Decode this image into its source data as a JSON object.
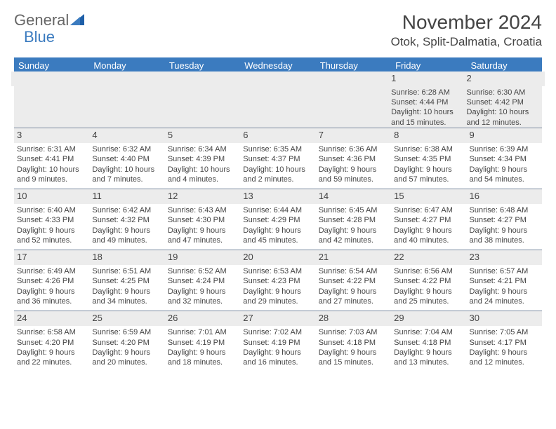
{
  "logo": {
    "general": "General",
    "blue": "Blue"
  },
  "title": "November 2024",
  "location": "Otok, Split-Dalmatia, Croatia",
  "colors": {
    "header_bg": "#3b7bbf",
    "header_text": "#ffffff",
    "daynum_bg": "#ececec",
    "border": "#7a8aa0",
    "text": "#444444"
  },
  "day_headers": [
    "Sunday",
    "Monday",
    "Tuesday",
    "Wednesday",
    "Thursday",
    "Friday",
    "Saturday"
  ],
  "weeks": [
    [
      null,
      null,
      null,
      null,
      null,
      {
        "n": "1",
        "sr": "Sunrise: 6:28 AM",
        "ss": "Sunset: 4:44 PM",
        "d1": "Daylight: 10 hours",
        "d2": "and 15 minutes."
      },
      {
        "n": "2",
        "sr": "Sunrise: 6:30 AM",
        "ss": "Sunset: 4:42 PM",
        "d1": "Daylight: 10 hours",
        "d2": "and 12 minutes."
      }
    ],
    [
      {
        "n": "3",
        "sr": "Sunrise: 6:31 AM",
        "ss": "Sunset: 4:41 PM",
        "d1": "Daylight: 10 hours",
        "d2": "and 9 minutes."
      },
      {
        "n": "4",
        "sr": "Sunrise: 6:32 AM",
        "ss": "Sunset: 4:40 PM",
        "d1": "Daylight: 10 hours",
        "d2": "and 7 minutes."
      },
      {
        "n": "5",
        "sr": "Sunrise: 6:34 AM",
        "ss": "Sunset: 4:39 PM",
        "d1": "Daylight: 10 hours",
        "d2": "and 4 minutes."
      },
      {
        "n": "6",
        "sr": "Sunrise: 6:35 AM",
        "ss": "Sunset: 4:37 PM",
        "d1": "Daylight: 10 hours",
        "d2": "and 2 minutes."
      },
      {
        "n": "7",
        "sr": "Sunrise: 6:36 AM",
        "ss": "Sunset: 4:36 PM",
        "d1": "Daylight: 9 hours",
        "d2": "and 59 minutes."
      },
      {
        "n": "8",
        "sr": "Sunrise: 6:38 AM",
        "ss": "Sunset: 4:35 PM",
        "d1": "Daylight: 9 hours",
        "d2": "and 57 minutes."
      },
      {
        "n": "9",
        "sr": "Sunrise: 6:39 AM",
        "ss": "Sunset: 4:34 PM",
        "d1": "Daylight: 9 hours",
        "d2": "and 54 minutes."
      }
    ],
    [
      {
        "n": "10",
        "sr": "Sunrise: 6:40 AM",
        "ss": "Sunset: 4:33 PM",
        "d1": "Daylight: 9 hours",
        "d2": "and 52 minutes."
      },
      {
        "n": "11",
        "sr": "Sunrise: 6:42 AM",
        "ss": "Sunset: 4:32 PM",
        "d1": "Daylight: 9 hours",
        "d2": "and 49 minutes."
      },
      {
        "n": "12",
        "sr": "Sunrise: 6:43 AM",
        "ss": "Sunset: 4:30 PM",
        "d1": "Daylight: 9 hours",
        "d2": "and 47 minutes."
      },
      {
        "n": "13",
        "sr": "Sunrise: 6:44 AM",
        "ss": "Sunset: 4:29 PM",
        "d1": "Daylight: 9 hours",
        "d2": "and 45 minutes."
      },
      {
        "n": "14",
        "sr": "Sunrise: 6:45 AM",
        "ss": "Sunset: 4:28 PM",
        "d1": "Daylight: 9 hours",
        "d2": "and 42 minutes."
      },
      {
        "n": "15",
        "sr": "Sunrise: 6:47 AM",
        "ss": "Sunset: 4:27 PM",
        "d1": "Daylight: 9 hours",
        "d2": "and 40 minutes."
      },
      {
        "n": "16",
        "sr": "Sunrise: 6:48 AM",
        "ss": "Sunset: 4:27 PM",
        "d1": "Daylight: 9 hours",
        "d2": "and 38 minutes."
      }
    ],
    [
      {
        "n": "17",
        "sr": "Sunrise: 6:49 AM",
        "ss": "Sunset: 4:26 PM",
        "d1": "Daylight: 9 hours",
        "d2": "and 36 minutes."
      },
      {
        "n": "18",
        "sr": "Sunrise: 6:51 AM",
        "ss": "Sunset: 4:25 PM",
        "d1": "Daylight: 9 hours",
        "d2": "and 34 minutes."
      },
      {
        "n": "19",
        "sr": "Sunrise: 6:52 AM",
        "ss": "Sunset: 4:24 PM",
        "d1": "Daylight: 9 hours",
        "d2": "and 32 minutes."
      },
      {
        "n": "20",
        "sr": "Sunrise: 6:53 AM",
        "ss": "Sunset: 4:23 PM",
        "d1": "Daylight: 9 hours",
        "d2": "and 29 minutes."
      },
      {
        "n": "21",
        "sr": "Sunrise: 6:54 AM",
        "ss": "Sunset: 4:22 PM",
        "d1": "Daylight: 9 hours",
        "d2": "and 27 minutes."
      },
      {
        "n": "22",
        "sr": "Sunrise: 6:56 AM",
        "ss": "Sunset: 4:22 PM",
        "d1": "Daylight: 9 hours",
        "d2": "and 25 minutes."
      },
      {
        "n": "23",
        "sr": "Sunrise: 6:57 AM",
        "ss": "Sunset: 4:21 PM",
        "d1": "Daylight: 9 hours",
        "d2": "and 24 minutes."
      }
    ],
    [
      {
        "n": "24",
        "sr": "Sunrise: 6:58 AM",
        "ss": "Sunset: 4:20 PM",
        "d1": "Daylight: 9 hours",
        "d2": "and 22 minutes."
      },
      {
        "n": "25",
        "sr": "Sunrise: 6:59 AM",
        "ss": "Sunset: 4:20 PM",
        "d1": "Daylight: 9 hours",
        "d2": "and 20 minutes."
      },
      {
        "n": "26",
        "sr": "Sunrise: 7:01 AM",
        "ss": "Sunset: 4:19 PM",
        "d1": "Daylight: 9 hours",
        "d2": "and 18 minutes."
      },
      {
        "n": "27",
        "sr": "Sunrise: 7:02 AM",
        "ss": "Sunset: 4:19 PM",
        "d1": "Daylight: 9 hours",
        "d2": "and 16 minutes."
      },
      {
        "n": "28",
        "sr": "Sunrise: 7:03 AM",
        "ss": "Sunset: 4:18 PM",
        "d1": "Daylight: 9 hours",
        "d2": "and 15 minutes."
      },
      {
        "n": "29",
        "sr": "Sunrise: 7:04 AM",
        "ss": "Sunset: 4:18 PM",
        "d1": "Daylight: 9 hours",
        "d2": "and 13 minutes."
      },
      {
        "n": "30",
        "sr": "Sunrise: 7:05 AM",
        "ss": "Sunset: 4:17 PM",
        "d1": "Daylight: 9 hours",
        "d2": "and 12 minutes."
      }
    ]
  ]
}
